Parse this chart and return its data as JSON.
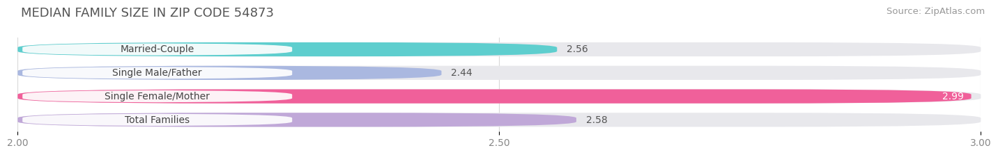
{
  "title": "MEDIAN FAMILY SIZE IN ZIP CODE 54873",
  "source": "Source: ZipAtlas.com",
  "categories": [
    "Married-Couple",
    "Single Male/Father",
    "Single Female/Mother",
    "Total Families"
  ],
  "values": [
    2.56,
    2.44,
    2.99,
    2.58
  ],
  "bar_colors": [
    "#5ecece",
    "#aab8e0",
    "#f0609a",
    "#c0a8d8"
  ],
  "xlim": [
    2.0,
    3.0
  ],
  "xticks": [
    2.0,
    2.5,
    3.0
  ],
  "xticklabels": [
    "2.00",
    "2.50",
    "3.00"
  ],
  "background_color": "#ffffff",
  "bar_bg_color": "#e8e8ec",
  "value_colors": [
    "#555555",
    "#555555",
    "#ffffff",
    "#555555"
  ],
  "title_fontsize": 13,
  "source_fontsize": 9.5,
  "label_fontsize": 10,
  "value_fontsize": 10
}
